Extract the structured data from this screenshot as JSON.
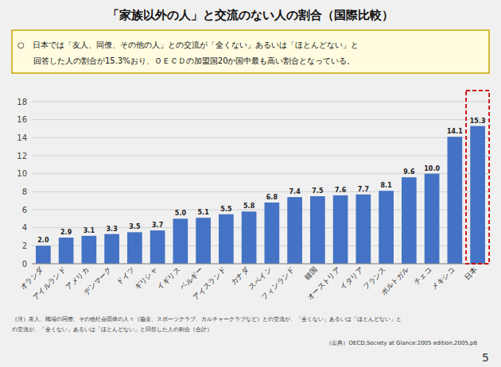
{
  "chart_data": {
    "type": "bar",
    "title": "「家族以外の人」と交流のない人の割合（国際比較）",
    "subtitle": [
      "○　日本では「友人、同僚、その他の人」との交流が「全くない」あるいは「ほとんどない」と",
      "　　回答した人の割合が15.3%おり、ＯＥＣＤの加盟国20か国中最も高い割合となっている。"
    ],
    "annotations": [
      "（注）友人、職場の同僚、その他社会団体の人々（協金、スポーツクラブ、カルチャークラブなど）との交流が、「全くない」あるいは「ほとんどない」と",
      "の交流が、「全くない」あるいは「ほとんどない」と回答した人の割合（合計）",
      "（出典）OECD,Society at Glance:2005 edition,2005,p8",
      "5"
    ],
    "categories": [
      "オランダ",
      "アイルランド",
      "アメリカ",
      "デンマーク",
      "ドイツ",
      "ギリシャ",
      "イギリス",
      "ベルギー",
      "アイスランド",
      "カナダ",
      "スペイン",
      "フィンランド",
      "韓国",
      "オーストリア",
      "イタリア",
      "フランス",
      "ポルトガル",
      "チェコ",
      "メキシコ",
      "日本"
    ],
    "values": [
      2.0,
      2.9,
      3.1,
      3.3,
      3.5,
      3.7,
      5.0,
      5.1,
      5.5,
      5.8,
      6.8,
      7.4,
      7.5,
      7.6,
      7.7,
      8.1,
      9.6,
      10.0,
      14.1,
      15.3
    ],
    "value_labels": [
      "2.0",
      "2.9",
      "3.1",
      "3.3",
      "3.5",
      "3.7",
      "5.0",
      "5.1",
      "5.5",
      "5.8",
      "6.8",
      "7.4",
      "7.5",
      "7.6",
      "7.7",
      "8.1",
      "9.6",
      "10.0",
      "14.1",
      "15.3"
    ],
    "data_labels": true,
    "color": "#4472C4",
    "ylim": [
      0,
      18
    ],
    "yticks": [
      0,
      2,
      4,
      6,
      8,
      10,
      12,
      14,
      16,
      18
    ],
    "grid": true
  }
}
